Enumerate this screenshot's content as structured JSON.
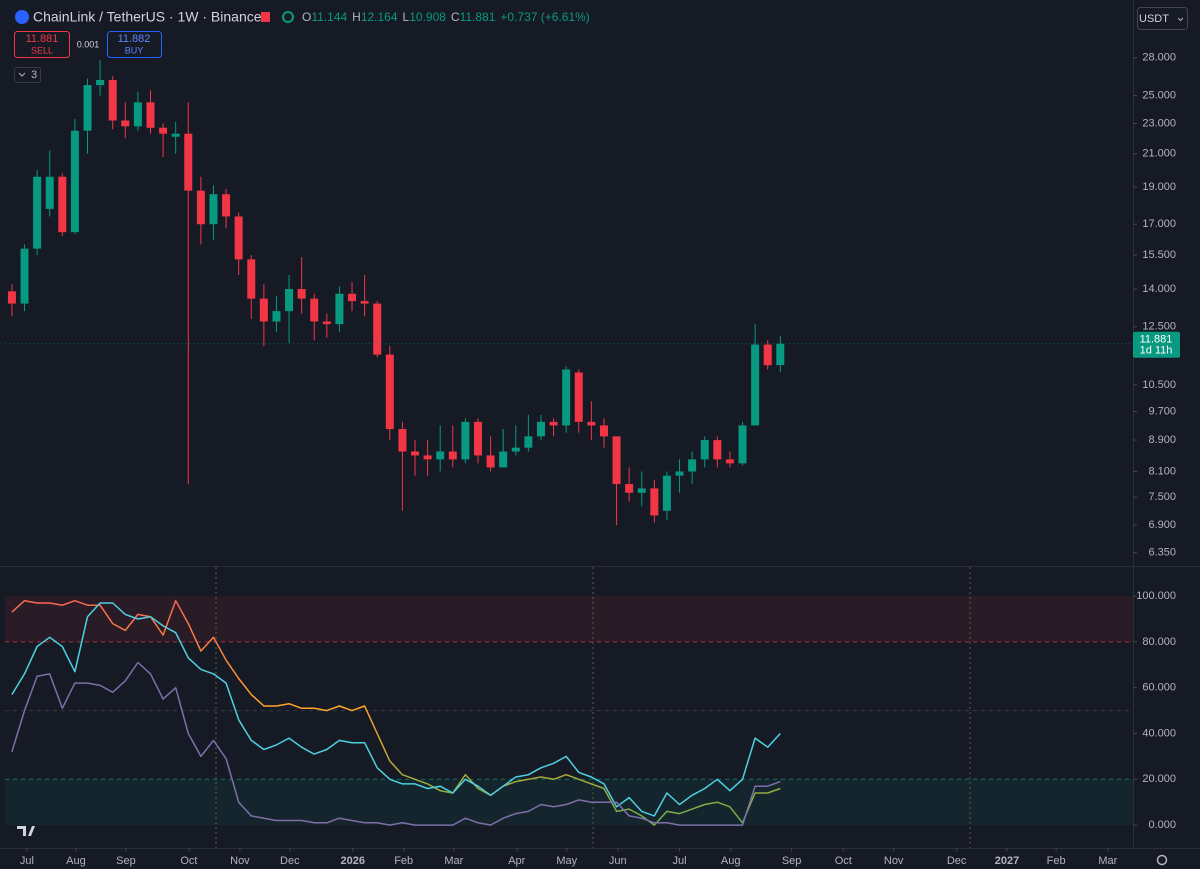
{
  "header": {
    "symbol": "ChainLink / TetherUS · 1W · Binance",
    "ohlc": [
      {
        "label": "O",
        "value": "11.144"
      },
      {
        "label": "H",
        "value": "12.164"
      },
      {
        "label": "L",
        "value": "10.908"
      },
      {
        "label": "C",
        "value": "11.881"
      }
    ],
    "change": "+0.737 (+6.61%)"
  },
  "trade": {
    "sell_price": "11.881",
    "sell": "SELL",
    "spread": "0.001",
    "buy_price": "11.882",
    "buy": "BUY"
  },
  "indicators_count": "3",
  "currency": "USDT",
  "price_label": {
    "price": "11.881",
    "countdown": "1d 11h"
  },
  "chart_data": [
    {
      "type": "candlestick",
      "log_scale": true,
      "up_color": "#089981",
      "down_color": "#f23645",
      "xlim": [
        -0.55,
        89
      ],
      "ylim": [
        6.12,
        32.8
      ],
      "yticks": [
        {
          "value": 28,
          "label": "28.000"
        },
        {
          "value": 25,
          "label": "25.000"
        },
        {
          "value": 23,
          "label": "23.000"
        },
        {
          "value": 21,
          "label": "21.000"
        },
        {
          "value": 19,
          "label": "19.000"
        },
        {
          "value": 17,
          "label": "17.000"
        },
        {
          "value": 15.5,
          "label": "15.500"
        },
        {
          "value": 14,
          "label": "14.000"
        },
        {
          "value": 12.5,
          "label": "12.500"
        },
        {
          "value": 10.5,
          "label": "10.500"
        },
        {
          "value": 9.7,
          "label": "9.700"
        },
        {
          "value": 8.9,
          "label": "8.900"
        },
        {
          "value": 8.1,
          "label": "8.100"
        },
        {
          "value": 7.5,
          "label": "7.500"
        },
        {
          "value": 6.9,
          "label": "6.900"
        },
        {
          "value": 6.35,
          "label": "6.350"
        }
      ],
      "open": [
        13.9,
        13.4,
        15.8,
        17.8,
        19.6,
        16.6,
        22.5,
        25.8,
        26.2,
        23.2,
        22.8,
        24.5,
        22.7,
        22.1,
        22.3,
        18.8,
        17.0,
        18.6,
        17.4,
        15.3,
        13.6,
        12.7,
        13.1,
        14.0,
        13.6,
        12.7,
        12.6,
        13.8,
        13.5,
        13.4,
        11.5,
        9.2,
        8.6,
        8.5,
        8.4,
        8.6,
        8.4,
        9.4,
        8.5,
        8.2,
        8.6,
        8.7,
        9.0,
        9.4,
        9.3,
        10.9,
        9.4,
        9.3,
        9.0,
        7.8,
        7.6,
        7.7,
        7.2,
        8.0,
        8.1,
        8.4,
        8.9,
        8.4,
        8.3,
        9.3,
        11.85,
        11.144
      ],
      "high": [
        14.2,
        16.0,
        20.0,
        21.2,
        19.8,
        23.3,
        26.3,
        27.8,
        26.5,
        24.5,
        25.3,
        25.4,
        23.0,
        23.1,
        24.5,
        19.6,
        19.1,
        18.9,
        17.6,
        15.5,
        14.2,
        13.7,
        14.6,
        15.4,
        13.8,
        13.0,
        14.1,
        14.3,
        14.6,
        13.5,
        11.8,
        9.4,
        8.9,
        8.9,
        9.3,
        9.3,
        9.5,
        9.5,
        9.0,
        9.2,
        9.3,
        9.6,
        9.6,
        9.5,
        11.1,
        11.0,
        10.0,
        9.5,
        9.0,
        8.2,
        8.1,
        7.9,
        8.1,
        8.4,
        8.6,
        9.0,
        9.0,
        8.6,
        9.4,
        12.6,
        12.0,
        12.164
      ],
      "low": [
        12.9,
        13.1,
        15.5,
        17.4,
        16.4,
        16.5,
        21.0,
        25.0,
        22.6,
        22.0,
        22.5,
        22.3,
        20.8,
        21.0,
        7.8,
        16.0,
        16.2,
        16.8,
        14.6,
        12.8,
        11.8,
        12.3,
        11.9,
        13.0,
        12.0,
        12.1,
        12.3,
        13.1,
        12.9,
        11.4,
        8.9,
        7.2,
        8.0,
        8.0,
        8.1,
        8.2,
        8.3,
        8.3,
        8.1,
        8.2,
        8.5,
        8.6,
        8.9,
        9.0,
        9.1,
        9.1,
        8.9,
        8.7,
        6.9,
        7.4,
        7.3,
        6.95,
        7.0,
        7.6,
        7.8,
        8.2,
        8.2,
        8.2,
        8.25,
        9.3,
        11.0,
        10.908
      ],
      "close": [
        13.4,
        15.8,
        19.6,
        19.6,
        16.6,
        22.5,
        25.8,
        26.2,
        23.2,
        22.8,
        24.5,
        22.7,
        22.3,
        22.3,
        18.8,
        17.0,
        18.6,
        17.4,
        15.3,
        13.6,
        12.7,
        13.1,
        14.0,
        13.6,
        12.7,
        12.6,
        13.8,
        13.5,
        13.4,
        11.5,
        9.2,
        8.6,
        8.5,
        8.4,
        8.6,
        8.4,
        9.4,
        8.5,
        8.2,
        8.6,
        8.7,
        9.0,
        9.4,
        9.3,
        11.0,
        9.4,
        9.3,
        9.0,
        7.8,
        7.6,
        7.7,
        7.1,
        8.0,
        8.1,
        8.4,
        8.9,
        8.4,
        8.3,
        9.3,
        11.85,
        11.14,
        11.881
      ]
    },
    {
      "type": "line",
      "xlim": [
        -0.55,
        89
      ],
      "ylim": [
        -10,
        112.7
      ],
      "yticks": [
        {
          "value": 100,
          "label": "100.000"
        },
        {
          "value": 80,
          "label": "80.000"
        },
        {
          "value": 60,
          "label": "60.000"
        },
        {
          "value": 40,
          "label": "40.000"
        },
        {
          "value": 20,
          "label": "20.000"
        },
        {
          "value": 0,
          "label": "0.000"
        }
      ],
      "xticks": [
        {
          "value": 1.19,
          "label": "Jul"
        },
        {
          "value": 5.08,
          "label": "Aug"
        },
        {
          "value": 9.05,
          "label": "Sep"
        },
        {
          "value": 14.05,
          "label": "Oct"
        },
        {
          "value": 18.1,
          "label": "Nov"
        },
        {
          "value": 22.06,
          "label": "Dec"
        },
        {
          "value": 27.06,
          "label": "2026"
        },
        {
          "value": 31.1,
          "label": "Feb"
        },
        {
          "value": 35.08,
          "label": "Mar"
        },
        {
          "value": 40.08,
          "label": "Apr"
        },
        {
          "value": 44.05,
          "label": "May"
        },
        {
          "value": 48.1,
          "label": "Jun"
        },
        {
          "value": 53.0,
          "label": "Jul"
        },
        {
          "value": 57.06,
          "label": "Aug"
        },
        {
          "value": 61.9,
          "label": "Sep"
        },
        {
          "value": 66.0,
          "label": "Oct"
        },
        {
          "value": 70.0,
          "label": "Nov"
        },
        {
          "value": 75.0,
          "label": "Dec"
        },
        {
          "value": 79.0,
          "label": "2027"
        },
        {
          "value": 82.9,
          "label": "Feb"
        },
        {
          "value": 87.0,
          "label": "Mar"
        }
      ],
      "bands": [
        {
          "range": [
            80,
            100
          ],
          "color": "rgba(242,54,69,0.09)"
        },
        {
          "range": [
            0,
            20
          ],
          "color": "rgba(8,153,129,0.09)"
        }
      ],
      "levels": [
        {
          "value": 80,
          "color": "#f23645"
        },
        {
          "value": 50,
          "color": "#434651"
        },
        {
          "value": 20,
          "color": "#089981"
        }
      ],
      "series": [
        {
          "colors": [
            "#f7525f",
            "#ffa726",
            "#4caf50"
          ],
          "values": [
            93,
            98,
            97,
            97,
            96,
            98,
            96,
            96,
            88,
            85,
            92,
            91,
            83,
            98,
            88,
            76,
            82,
            72,
            64,
            57,
            52,
            52,
            53,
            51,
            51,
            50,
            52,
            50,
            52,
            40,
            28,
            22,
            20,
            18,
            15,
            14,
            22,
            16,
            13,
            17,
            19,
            20,
            21,
            20,
            22,
            20,
            18,
            16,
            6,
            7,
            4,
            0,
            6,
            5,
            7,
            9,
            10,
            8,
            1,
            14,
            14,
            16
          ]
        },
        {
          "color": "#4dd0e1",
          "values": [
            57,
            66,
            78,
            82,
            78,
            67,
            91,
            97,
            97,
            92,
            90,
            91,
            87,
            84,
            73,
            68,
            66,
            62,
            46,
            37,
            33,
            35,
            38,
            34,
            31,
            33,
            37,
            36,
            36,
            25,
            20,
            18,
            18,
            16,
            17,
            14,
            20,
            17,
            13,
            17,
            21,
            22,
            25,
            27,
            30,
            23,
            21,
            18,
            8,
            12,
            6,
            4,
            14,
            9,
            13,
            16,
            20,
            15,
            20,
            38,
            34,
            40
          ]
        },
        {
          "color": "#7e6fa8",
          "values": [
            32,
            50,
            65,
            66,
            51,
            62,
            62,
            61,
            58,
            63,
            71,
            66,
            55,
            60,
            40,
            30,
            37,
            29,
            10,
            4,
            3,
            2,
            2,
            2,
            1,
            1,
            3,
            2,
            1,
            1,
            0,
            1,
            0,
            0,
            0,
            0,
            3,
            1,
            0,
            3,
            5,
            6,
            9,
            8,
            9,
            11,
            10,
            10,
            10,
            4,
            3,
            1,
            1,
            0,
            0,
            0,
            0,
            0,
            0,
            17,
            17,
            19
          ]
        }
      ]
    }
  ]
}
